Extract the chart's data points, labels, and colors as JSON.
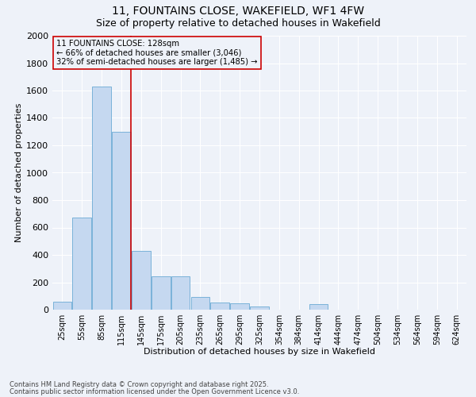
{
  "title_line1": "11, FOUNTAINS CLOSE, WAKEFIELD, WF1 4FW",
  "title_line2": "Size of property relative to detached houses in Wakefield",
  "xlabel": "Distribution of detached houses by size in Wakefield",
  "ylabel": "Number of detached properties",
  "categories": [
    "25sqm",
    "55sqm",
    "85sqm",
    "115sqm",
    "145sqm",
    "175sqm",
    "205sqm",
    "235sqm",
    "265sqm",
    "295sqm",
    "325sqm",
    "354sqm",
    "384sqm",
    "414sqm",
    "444sqm",
    "474sqm",
    "504sqm",
    "534sqm",
    "564sqm",
    "594sqm",
    "624sqm"
  ],
  "values": [
    60,
    670,
    1630,
    1300,
    430,
    245,
    245,
    90,
    50,
    45,
    25,
    0,
    0,
    40,
    0,
    0,
    0,
    0,
    0,
    0,
    0
  ],
  "bar_color": "#c5d8f0",
  "bar_edgecolor": "#6aaad4",
  "vline_x": 3.5,
  "vline_color": "#cc0000",
  "ylim": [
    0,
    2000
  ],
  "yticks": [
    0,
    200,
    400,
    600,
    800,
    1000,
    1200,
    1400,
    1600,
    1800,
    2000
  ],
  "annotation_text": "11 FOUNTAINS CLOSE: 128sqm\n← 66% of detached houses are smaller (3,046)\n32% of semi-detached houses are larger (1,485) →",
  "annotation_box_edgecolor": "#cc0000",
  "footnote1": "Contains HM Land Registry data © Crown copyright and database right 2025.",
  "footnote2": "Contains public sector information licensed under the Open Government Licence v3.0.",
  "bg_color": "#eef2f9",
  "grid_color": "#ffffff",
  "title_fontsize": 10,
  "subtitle_fontsize": 9
}
